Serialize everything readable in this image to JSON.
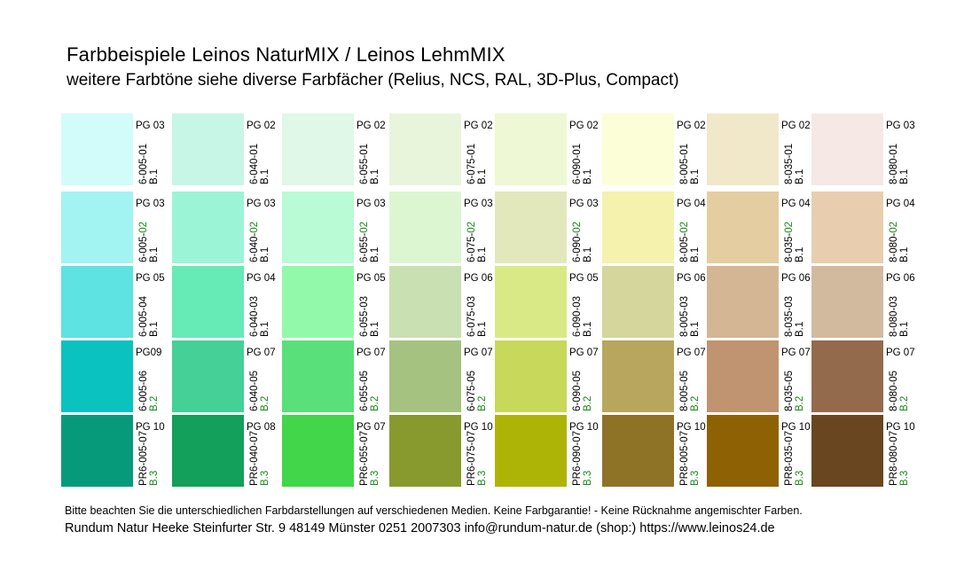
{
  "title": "Farbbeispiele  Leinos NaturMIX / Leinos LehmMIX",
  "subtitle": "weitere Farbtöne siehe diverse Farbfächer (Relius, NCS, RAL, 3D-Plus, Compact)",
  "rows": [
    [
      {
        "color": "#d2fcfa",
        "pg": "PG 03",
        "code_pre": "6-005-01",
        "code_green": "",
        "b": "B.1",
        "b_green": false
      },
      {
        "color": "#c7f6e6",
        "pg": "PG 02",
        "code_pre": "6-040-01",
        "code_green": "",
        "b": "B.1",
        "b_green": false
      },
      {
        "color": "#dff8e8",
        "pg": "PG 02",
        "code_pre": "6-055-01",
        "code_green": "",
        "b": "B.1",
        "b_green": false
      },
      {
        "color": "#e8f5da",
        "pg": "PG 02",
        "code_pre": "6-075-01",
        "code_green": "",
        "b": "B.1",
        "b_green": false
      },
      {
        "color": "#eef8d4",
        "pg": "PG 02",
        "code_pre": "6-090-01",
        "code_green": "",
        "b": "B.1",
        "b_green": false
      },
      {
        "color": "#fcfed8",
        "pg": "PG 02",
        "code_pre": "8-005-01",
        "code_green": "",
        "b": "B.1",
        "b_green": false
      },
      {
        "color": "#f1e8ca",
        "pg": "PG 02",
        "code_pre": "8-035-01",
        "code_green": "",
        "b": "B.1",
        "b_green": false
      },
      {
        "color": "#f5e8e5",
        "pg": "PG 03",
        "code_pre": "8-080-01",
        "code_green": "",
        "b": "B.1",
        "b_green": false
      }
    ],
    [
      {
        "color": "#a2f4f2",
        "pg": "PG 03",
        "code_pre": "6-005-",
        "code_green": "02",
        "b": "B.1",
        "b_green": false
      },
      {
        "color": "#9cf4d6",
        "pg": "PG 03",
        "code_pre": "6-040-",
        "code_green": "02",
        "b": "B.1",
        "b_green": false
      },
      {
        "color": "#b8fbd4",
        "pg": "PG 03",
        "code_pre": "6-055-",
        "code_green": "02",
        "b": "B.1",
        "b_green": false
      },
      {
        "color": "#dcf6d2",
        "pg": "PG 03",
        "code_pre": "6-075-",
        "code_green": "02",
        "b": "B.1",
        "b_green": false
      },
      {
        "color": "#e2e8bc",
        "pg": "PG 03",
        "code_pre": "6-090-",
        "code_green": "02",
        "b": "B.1",
        "b_green": false
      },
      {
        "color": "#f4f2ac",
        "pg": "PG 04",
        "code_pre": "8-005-",
        "code_green": "02",
        "b": "B.1",
        "b_green": false
      },
      {
        "color": "#e4cda0",
        "pg": "PG 04",
        "code_pre": "8-035-",
        "code_green": "02",
        "b": "B.1",
        "b_green": false
      },
      {
        "color": "#e8ceae",
        "pg": "PG 04",
        "code_pre": "8-080-",
        "code_green": "02",
        "b": "B.1",
        "b_green": false
      }
    ],
    [
      {
        "color": "#5ee2e2",
        "pg": "PG 05",
        "code_pre": "6-005-04",
        "code_green": "",
        "b": "B.1",
        "b_green": false
      },
      {
        "color": "#66eab6",
        "pg": "PG 04",
        "code_pre": "6-040-03",
        "code_green": "",
        "b": "B.1",
        "b_green": false
      },
      {
        "color": "#92f9aa",
        "pg": "PG 05",
        "code_pre": "6-055-03",
        "code_green": "",
        "b": "B.1",
        "b_green": false
      },
      {
        "color": "#c8e0b2",
        "pg": "PG 06",
        "code_pre": "6-075-03",
        "code_green": "",
        "b": "B.1",
        "b_green": false
      },
      {
        "color": "#d8e986",
        "pg": "PG 05",
        "code_pre": "6-090-03",
        "code_green": "",
        "b": "B.1",
        "b_green": false
      },
      {
        "color": "#d4d69c",
        "pg": "PG 06",
        "code_pre": "8-005-03",
        "code_green": "",
        "b": "B.1",
        "b_green": false
      },
      {
        "color": "#d4b694",
        "pg": "PG 06",
        "code_pre": "8-035-03",
        "code_green": "",
        "b": "B.1",
        "b_green": false
      },
      {
        "color": "#d2ba9e",
        "pg": "PG 06",
        "code_pre": "8-080-03",
        "code_green": "",
        "b": "B.1",
        "b_green": false
      }
    ],
    [
      {
        "color": "#0ac2c0",
        "pg": "PG09",
        "code_pre": "6-005-06",
        "code_green": "",
        "b": "B.2",
        "b_green": true
      },
      {
        "color": "#44d096",
        "pg": "PG 07",
        "code_pre": "6-040-05",
        "code_green": "",
        "b": "B.2",
        "b_green": true
      },
      {
        "color": "#5ae07a",
        "pg": "PG 07",
        "code_pre": "6-055-05",
        "code_green": "",
        "b": "B.2",
        "b_green": true
      },
      {
        "color": "#a6c280",
        "pg": "PG 07",
        "code_pre": "6-075-05",
        "code_green": "",
        "b": "B.2",
        "b_green": true
      },
      {
        "color": "#c8d85a",
        "pg": "PG 07",
        "code_pre": "6-090-05",
        "code_green": "",
        "b": "B.2",
        "b_green": true
      },
      {
        "color": "#b8a65e",
        "pg": "PG 07",
        "code_pre": "8-005-05",
        "code_green": "",
        "b": "B.2",
        "b_green": true
      },
      {
        "color": "#c09470",
        "pg": "PG 07",
        "code_pre": "8-035-05",
        "code_green": "",
        "b": "B.2",
        "b_green": true
      },
      {
        "color": "#946a4c",
        "pg": "PG 07",
        "code_pre": "8-080-05",
        "code_green": "",
        "b": "B.2",
        "b_green": true
      }
    ],
    [
      {
        "color": "#079a7a",
        "pg": "PG 10",
        "code_pre": "PR6-005-07",
        "code_green": "",
        "b": "B.3",
        "b_green": true
      },
      {
        "color": "#12a05a",
        "pg": "PG 08",
        "code_pre": "PR6-040-07",
        "code_green": "",
        "b": "B.3",
        "b_green": true
      },
      {
        "color": "#42d64a",
        "pg": "PG 07",
        "code_pre": "PR6-055-07",
        "code_green": "",
        "b": "B.3",
        "b_green": true
      },
      {
        "color": "#889a2e",
        "pg": "PG 10",
        "code_pre": "PR6-075-07",
        "code_green": "",
        "b": "B.3",
        "b_green": true
      },
      {
        "color": "#aeb406",
        "pg": "PG 10",
        "code_pre": "PR6-090-07",
        "code_green": "",
        "b": "B.3",
        "b_green": true
      },
      {
        "color": "#8e7226",
        "pg": "PG 10",
        "code_pre": "PR8-005-07",
        "code_green": "",
        "b": "B.3",
        "b_green": true
      },
      {
        "color": "#8e6204",
        "pg": "PG 10",
        "code_pre": "PR8-035-07",
        "code_green": "",
        "b": "B.3",
        "b_green": true
      },
      {
        "color": "#6a4620",
        "pg": "PG 10",
        "code_pre": "PR8-080-07",
        "code_green": "",
        "b": "B.3",
        "b_green": true
      }
    ]
  ],
  "note": "Bitte beachten Sie die unterschiedlichen Farbdarstellungen auf verschiedenen Medien.  Keine Farbgarantie! - Keine Rücknahme angemischter Farben.",
  "contact": "Rundum Natur Heeke  Steinfurter Str. 9  48149 Münster  0251 2007303  info@rundum-natur.de    (shop:) https://www.leinos24.de"
}
